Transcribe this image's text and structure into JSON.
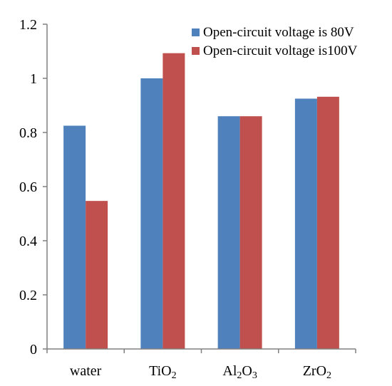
{
  "chart_data": {
    "type": "bar",
    "categories": [
      {
        "base": "water",
        "parts": [
          {
            "t": "water",
            "sub": false
          }
        ]
      },
      {
        "base": "TiO2",
        "parts": [
          {
            "t": "TiO",
            "sub": false
          },
          {
            "t": "2",
            "sub": true
          }
        ]
      },
      {
        "base": "Al2O3",
        "parts": [
          {
            "t": "Al",
            "sub": false
          },
          {
            "t": "2",
            "sub": true
          },
          {
            "t": "O",
            "sub": false
          },
          {
            "t": "3",
            "sub": true
          }
        ]
      },
      {
        "base": "ZrO2",
        "parts": [
          {
            "t": "ZrO",
            "sub": false
          },
          {
            "t": "2",
            "sub": true
          }
        ]
      }
    ],
    "series": [
      {
        "name": "Open-circuit voltage is 80V",
        "color": "#4F81BD",
        "values": [
          0.825,
          1.0,
          0.86,
          0.925
        ]
      },
      {
        "name": "Open-circuit voltage is100V",
        "color": "#C0504D",
        "values": [
          0.547,
          1.093,
          0.86,
          0.932
        ]
      }
    ],
    "yticks": [
      "0",
      "0.2",
      "0.4",
      "0.6",
      "0.8",
      "1",
      "1.2"
    ],
    "ylim": [
      0,
      1.2
    ],
    "legend_position": "top-right",
    "grid": false
  }
}
